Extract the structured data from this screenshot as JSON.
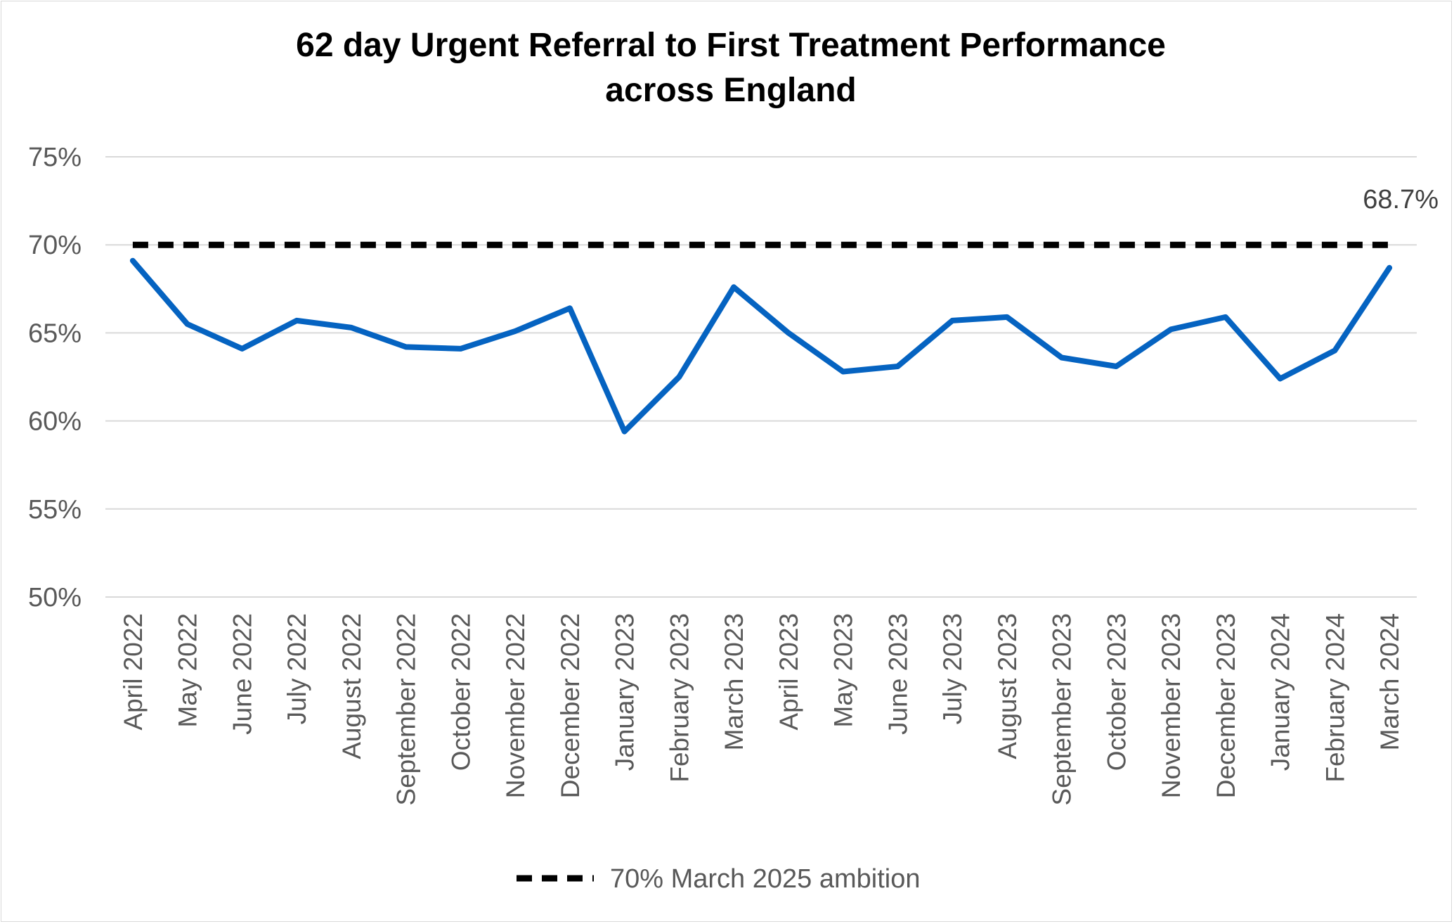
{
  "chart_data": {
    "type": "line",
    "title_lines": [
      "62 day Urgent Referral to First Treatment Performance",
      "across England"
    ],
    "xlabel": "",
    "ylabel": "",
    "ylim": [
      50,
      75
    ],
    "y_ticks": [
      50,
      55,
      60,
      65,
      70,
      75
    ],
    "y_tick_labels": [
      "50%",
      "55%",
      "60%",
      "65%",
      "70%",
      "75%"
    ],
    "grid": "horizontal",
    "legend_position": "bottom",
    "categories": [
      "April 2022",
      "May 2022",
      "June 2022",
      "July 2022",
      "August 2022",
      "September 2022",
      "October 2022",
      "November 2022",
      "December 2022",
      "January 2023",
      "February 2023",
      "March 2023",
      "April 2023",
      "May 2023",
      "June 2023",
      "July 2023",
      "August 2023",
      "September 2023",
      "October 2023",
      "November 2023",
      "December 2023",
      "January 2024",
      "February 2024",
      "March 2024"
    ],
    "series": [
      {
        "key": "performance",
        "color": "#0563c1",
        "style": "solid",
        "values": [
          69.1,
          65.5,
          64.1,
          65.7,
          65.3,
          64.2,
          64.1,
          65.1,
          66.4,
          59.4,
          62.5,
          67.6,
          65.0,
          62.8,
          63.1,
          65.7,
          65.9,
          63.6,
          63.1,
          65.2,
          65.9,
          62.4,
          64.0,
          68.7
        ]
      },
      {
        "key": "ambition",
        "name": "70% March 2025 ambition",
        "color": "#000000",
        "style": "dashed",
        "values": [
          70,
          70,
          70,
          70,
          70,
          70,
          70,
          70,
          70,
          70,
          70,
          70,
          70,
          70,
          70,
          70,
          70,
          70,
          70,
          70,
          70,
          70,
          70,
          70
        ]
      }
    ],
    "annotations": [
      {
        "series": "performance",
        "index": 23,
        "text": "68.7%"
      }
    ]
  }
}
